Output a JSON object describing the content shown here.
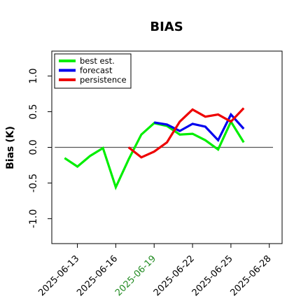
{
  "chart_data": {
    "type": "line",
    "title": "BIAS",
    "ylabel": "Bias (K)",
    "xlabel": "",
    "x_ticks": [
      {
        "date": "2025-06-13",
        "label": "2025-06-13",
        "color": "#000000"
      },
      {
        "date": "2025-06-16",
        "label": "2025-06-16",
        "color": "#000000"
      },
      {
        "date": "2025-06-19",
        "label": "2025-06-19",
        "color": "#228b22"
      },
      {
        "date": "2025-06-22",
        "label": "2025-06-22",
        "color": "#000000"
      },
      {
        "date": "2025-06-25",
        "label": "2025-06-25",
        "color": "#000000"
      },
      {
        "date": "2025-06-28",
        "label": "2025-06-28",
        "color": "#000000"
      }
    ],
    "xlim": [
      "2025-06-11",
      "2025-06-29"
    ],
    "y_ticks": [
      -1.0,
      -0.5,
      0.0,
      0.5,
      1.0
    ],
    "y_tick_labels": [
      "-1.0",
      "-0.5",
      "0.0",
      "0.5",
      "1.0"
    ],
    "ylim": [
      -1.35,
      1.35
    ],
    "reference_line": 0.0,
    "grid": false,
    "legend_position": "top-left",
    "series": [
      {
        "name": "best est.",
        "color": "#00ee00",
        "points": [
          [
            "2025-06-12",
            -0.15
          ],
          [
            "2025-06-13",
            -0.27
          ],
          [
            "2025-06-14",
            -0.12
          ],
          [
            "2025-06-15",
            -0.01
          ],
          [
            "2025-06-16",
            -0.56
          ],
          [
            "2025-06-17",
            -0.17
          ],
          [
            "2025-06-18",
            0.18
          ],
          [
            "2025-06-19",
            0.34
          ],
          [
            "2025-06-20",
            0.3
          ],
          [
            "2025-06-21",
            0.18
          ],
          [
            "2025-06-22",
            0.19
          ],
          [
            "2025-06-23",
            0.1
          ],
          [
            "2025-06-24",
            -0.03
          ],
          [
            "2025-06-25",
            0.36
          ],
          [
            "2025-06-26",
            0.07
          ]
        ]
      },
      {
        "name": "forecast",
        "color": "#0000ee",
        "points": [
          [
            "2025-06-19",
            0.35
          ],
          [
            "2025-06-20",
            0.32
          ],
          [
            "2025-06-21",
            0.23
          ],
          [
            "2025-06-22",
            0.33
          ],
          [
            "2025-06-23",
            0.29
          ],
          [
            "2025-06-24",
            0.1
          ],
          [
            "2025-06-25",
            0.46
          ],
          [
            "2025-06-26",
            0.26
          ]
        ]
      },
      {
        "name": "persistence",
        "color": "#ee0000",
        "points": [
          [
            "2025-06-17",
            0.0
          ],
          [
            "2025-06-18",
            -0.14
          ],
          [
            "2025-06-19",
            -0.06
          ],
          [
            "2025-06-20",
            0.07
          ],
          [
            "2025-06-21",
            0.36
          ],
          [
            "2025-06-22",
            0.53
          ],
          [
            "2025-06-23",
            0.43
          ],
          [
            "2025-06-24",
            0.46
          ],
          [
            "2025-06-25",
            0.36
          ],
          [
            "2025-06-26",
            0.55
          ]
        ]
      }
    ]
  }
}
